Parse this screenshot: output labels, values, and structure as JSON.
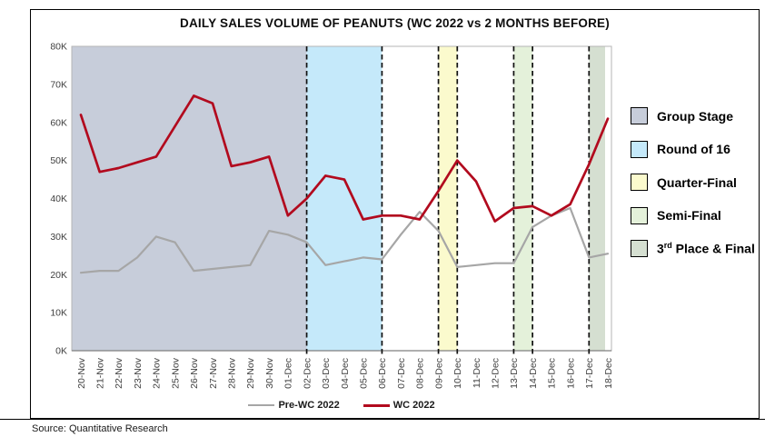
{
  "source": "Source: Quantitative Research",
  "chart_data": {
    "type": "line",
    "title": "DAILY SALES VOLUME OF PEANUTS (WC 2022 vs 2 MONTHS BEFORE)",
    "unit": "K (thousands of units, daily sales volume)",
    "x": [
      "20-Nov",
      "21-Nov",
      "22-Nov",
      "23-Nov",
      "24-Nov",
      "25-Nov",
      "26-Nov",
      "27-Nov",
      "28-Nov",
      "29-Nov",
      "30-Nov",
      "01-Dec",
      "02-Dec",
      "03-Dec",
      "04-Dec",
      "05-Dec",
      "06-Dec",
      "07-Dec",
      "08-Dec",
      "09-Dec",
      "10-Dec",
      "11-Dec",
      "12-Dec",
      "13-Dec",
      "14-Dec",
      "15-Dec",
      "16-Dec",
      "17-Dec",
      "18-Dec"
    ],
    "ylim": [
      0,
      80
    ],
    "yticks": [
      "0K",
      "10K",
      "20K",
      "30K",
      "40K",
      "50K",
      "60K",
      "70K",
      "80K"
    ],
    "grid": false,
    "legend_position": "stage phases right, series bottom",
    "series": [
      {
        "name": "Pre-WC 2022",
        "color": "#a6a6a6",
        "values": [
          20.5,
          21,
          21,
          24.5,
          30,
          28.5,
          21,
          21.5,
          22,
          22.5,
          31.5,
          30.5,
          28.5,
          22.5,
          23.5,
          24.5,
          24,
          30.5,
          36.5,
          31.5,
          22,
          22.5,
          23,
          23,
          32.5,
          35.5,
          37.5,
          24.5,
          25.5
        ]
      },
      {
        "name": "WC 2022",
        "color": "#b20a1e",
        "values": [
          62,
          47,
          48,
          49.5,
          51,
          59,
          67,
          65,
          48.5,
          49.5,
          51,
          35.5,
          40,
          46,
          45,
          34.5,
          35.5,
          35.5,
          34.5,
          42,
          50,
          44.5,
          34,
          37.5,
          38,
          35.5,
          38.5,
          49,
          61
        ]
      }
    ],
    "phases": [
      {
        "label": "Group Stage",
        "color": "#c7cdda",
        "start": "plot-start",
        "end": "02-Dec",
        "dashed_start": false,
        "dashed_end": true
      },
      {
        "label": "Round of 16",
        "color": "#c5e9fa",
        "start": "02-Dec",
        "end": "06-Dec",
        "dashed_start": true,
        "dashed_end": true
      },
      {
        "label": "Quarter-Final",
        "color": "#fbfacd",
        "start": "09-Dec",
        "end": "10-Dec",
        "dashed_start": true,
        "dashed_end": true
      },
      {
        "label": "Semi-Final",
        "color": "#e4f1da",
        "start": "13-Dec",
        "end": "14-Dec",
        "dashed_start": true,
        "dashed_end": true
      },
      {
        "label": "3rd Place & Final",
        "label_base": "3",
        "label_sup": "rd",
        "label_rest": " Place & Final",
        "color": "#d5dfd1",
        "start": "17-Dec",
        "end": "plot-end",
        "dashed_start": true,
        "dashed_end": false
      }
    ]
  }
}
